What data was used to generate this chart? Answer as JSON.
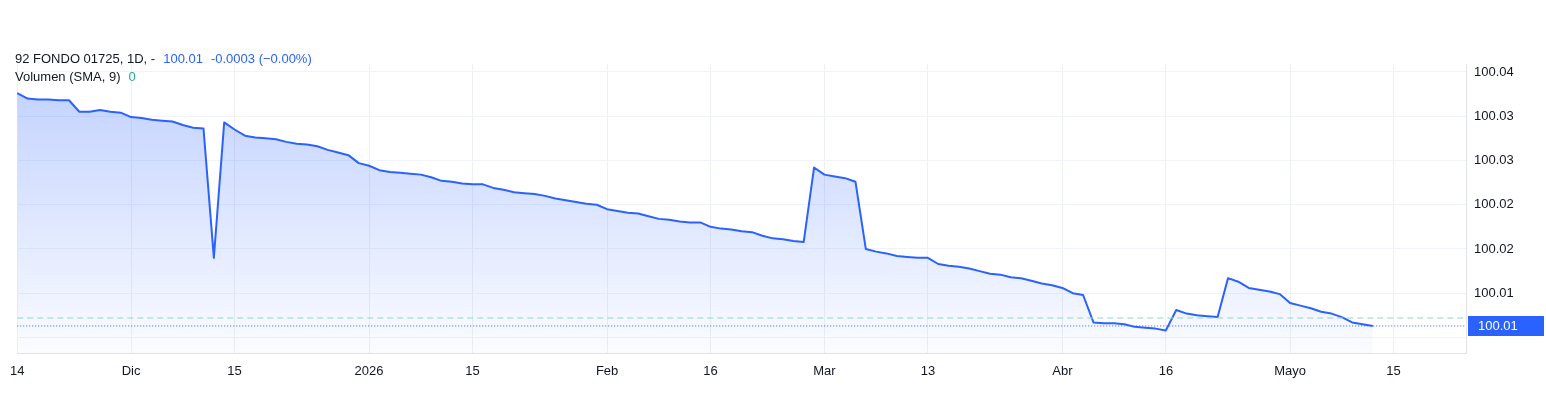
{
  "chart_data": {
    "type": "area",
    "annotations": [
      "92 FONDO 01725, 1D, -",
      "100.01",
      "-0.0003 (−0.00%)",
      "Volumen (SMA, 9)",
      "0"
    ],
    "categories": [
      "14",
      null,
      null,
      null,
      null,
      null,
      null,
      null,
      null,
      null,
      null,
      "Dic",
      null,
      null,
      null,
      null,
      null,
      null,
      null,
      null,
      null,
      "15",
      null,
      null,
      null,
      null,
      null,
      null,
      null,
      null,
      null,
      null,
      null,
      null,
      "2026",
      null,
      null,
      null,
      null,
      null,
      null,
      null,
      null,
      null,
      "15",
      null,
      null,
      null,
      null,
      null,
      null,
      null,
      null,
      null,
      null,
      null,
      null,
      "Feb",
      null,
      null,
      null,
      null,
      null,
      null,
      null,
      null,
      null,
      "16",
      null,
      null,
      null,
      null,
      null,
      null,
      null,
      null,
      null,
      null,
      "Mar",
      null,
      null,
      null,
      null,
      null,
      null,
      null,
      null,
      null,
      "13",
      null,
      null,
      null,
      null,
      null,
      null,
      null,
      null,
      null,
      null,
      null,
      null,
      "Abr",
      null,
      null,
      null,
      null,
      null,
      null,
      null,
      null,
      null,
      "16",
      null,
      null,
      null,
      null,
      null,
      null,
      null,
      null,
      null,
      null,
      null,
      "Mayo",
      null,
      null,
      null,
      null,
      null,
      null,
      null,
      null,
      null,
      "15",
      null,
      null,
      null,
      null,
      null,
      null,
      null
    ],
    "series": [
      {
        "color": "#2962ff",
        "values": [
          100.0376,
          100.037,
          100.0369,
          100.0369,
          100.0368,
          100.0368,
          100.0355,
          100.0355,
          100.0357,
          100.0355,
          100.0354,
          100.0349,
          100.0348,
          100.0346,
          100.0345,
          100.0344,
          100.034,
          100.0337,
          100.0336,
          100.019,
          100.0343,
          100.0335,
          100.0328,
          100.0326,
          100.0325,
          100.0324,
          100.0321,
          100.0319,
          100.0318,
          100.0316,
          100.0312,
          100.0309,
          100.0306,
          100.0297,
          100.0294,
          100.0289,
          100.0287,
          100.0286,
          100.0285,
          100.0284,
          100.0281,
          100.0277,
          100.0276,
          100.0274,
          100.0273,
          100.0273,
          100.0269,
          100.0267,
          100.0264,
          100.0263,
          100.0262,
          100.026,
          100.0257,
          100.0255,
          100.0253,
          100.0251,
          100.025,
          100.0245,
          100.0243,
          100.0241,
          100.024,
          100.0237,
          100.0234,
          100.0233,
          100.0231,
          100.023,
          100.023,
          100.0225,
          100.0223,
          100.0222,
          100.022,
          100.0219,
          100.0215,
          100.0212,
          100.0211,
          100.0209,
          100.0208,
          100.0292,
          100.0284,
          100.0282,
          100.028,
          100.0276,
          100.02,
          100.0197,
          100.0195,
          100.0192,
          100.0191,
          100.019,
          100.019,
          100.0183,
          100.0181,
          100.018,
          100.0178,
          100.0175,
          100.0172,
          100.0171,
          100.0168,
          100.0167,
          100.0164,
          100.0161,
          100.0159,
          100.0156,
          100.015,
          100.0148,
          100.0117,
          100.0116,
          100.0116,
          100.0115,
          100.0112,
          100.0111,
          100.011,
          100.0108,
          100.0131,
          100.0127,
          100.0125,
          100.0124,
          100.0123,
          100.0167,
          100.0163,
          100.0156,
          100.0154,
          100.0152,
          100.0149,
          100.0139,
          100.0136,
          100.0133,
          100.0129,
          100.0127,
          100.0123,
          100.0117,
          100.0115,
          100.0113,
          null,
          null,
          null,
          null,
          null,
          null,
          null,
          null,
          null
        ]
      }
    ],
    "ylim": [
      100.0082,
      100.0409
    ],
    "yticks": [
      {
        "value": 100.04,
        "label": "100.04"
      },
      {
        "value": 100.035,
        "label": "100.03"
      },
      {
        "value": 100.03,
        "label": "100.03"
      },
      {
        "value": 100.025,
        "label": "100.02"
      },
      {
        "value": 100.02,
        "label": "100.02"
      },
      {
        "value": 100.015,
        "label": "100.01"
      },
      {
        "value": 100.01,
        "label": null
      }
    ],
    "ref_lines": [
      {
        "axis": "y",
        "value": 100.0122,
        "label": null,
        "color": "#8fd9c8",
        "line_style": "dashed"
      },
      {
        "axis": "y",
        "value": 100.0113,
        "label": "100.01",
        "color": "#2962ff",
        "line_style": "dotted"
      }
    ],
    "grid": true,
    "legend": false,
    "marker": "none",
    "line_style": "solid"
  }
}
